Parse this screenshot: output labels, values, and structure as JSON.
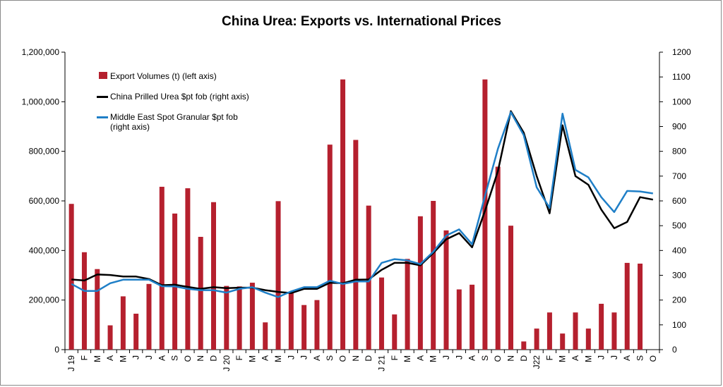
{
  "chart_data": {
    "type": "bar+line",
    "title": "China Urea: Exports vs. International Prices",
    "categories": [
      "J 19",
      "F",
      "M",
      "A",
      "M",
      "J",
      "J",
      "A",
      "S",
      "O",
      "N",
      "D",
      "J 20",
      "F",
      "M",
      "A",
      "M",
      "J",
      "J",
      "A",
      "S",
      "O",
      "N",
      "D",
      "J 21",
      "F",
      "M",
      "A",
      "M",
      "J",
      "J",
      "A",
      "S",
      "O",
      "N",
      "D",
      "J22",
      "F",
      "M",
      "A",
      "M",
      "J",
      "J",
      "A",
      "S",
      "O"
    ],
    "left_axis": {
      "min": 0,
      "max": 1200000,
      "ticks": [
        "0",
        "200,000",
        "400,000",
        "600,000",
        "800,000",
        "1,000,000",
        "1,200,000"
      ]
    },
    "right_axis": {
      "min": 0,
      "max": 1200,
      "ticks": [
        "0",
        "100",
        "200",
        "300",
        "400",
        "500",
        "600",
        "700",
        "800",
        "900",
        "1000",
        "1100",
        "1200"
      ]
    },
    "series": [
      {
        "name": "Export Volumes (t) (left axis)",
        "kind": "bar",
        "axis": "left",
        "color": "#b5202e",
        "values": [
          588000,
          393000,
          325000,
          98000,
          215000,
          145000,
          265000,
          657000,
          549000,
          651000,
          455000,
          595000,
          257000,
          255000,
          270000,
          110000,
          599000,
          230000,
          180000,
          200000,
          827000,
          1090000,
          846000,
          581000,
          291000,
          142000,
          366000,
          538000,
          600000,
          481000,
          243000,
          262000,
          1090000,
          738000,
          500000,
          33000,
          85000,
          150000,
          65000,
          150000,
          85000,
          185000,
          150000,
          350000,
          347000,
          null
        ]
      },
      {
        "name": "China Prilled Urea $pt fob (right axis)",
        "kind": "line",
        "axis": "right",
        "color": "#000000",
        "values": [
          283,
          279,
          303,
          301,
          295,
          295,
          285,
          260,
          262,
          253,
          245,
          252,
          248,
          250,
          250,
          240,
          233,
          228,
          245,
          245,
          270,
          268,
          282,
          283,
          322,
          350,
          350,
          340,
          390,
          445,
          470,
          413,
          560,
          720,
          962,
          875,
          700,
          550,
          905,
          700,
          665,
          565,
          490,
          515,
          615,
          605
        ]
      },
      {
        "name": "Middle East Spot Granular $pt fob (right axis)",
        "kind": "line",
        "axis": "right",
        "color": "#1f7fc7",
        "values": [
          265,
          237,
          237,
          268,
          282,
          282,
          282,
          256,
          255,
          245,
          240,
          240,
          230,
          245,
          252,
          230,
          212,
          235,
          252,
          252,
          278,
          265,
          275,
          275,
          350,
          365,
          360,
          345,
          395,
          460,
          485,
          425,
          620,
          810,
          958,
          865,
          655,
          572,
          952,
          725,
          695,
          615,
          555,
          640,
          638,
          630
        ]
      }
    ],
    "legend_placement": "top-left",
    "grid": false
  }
}
